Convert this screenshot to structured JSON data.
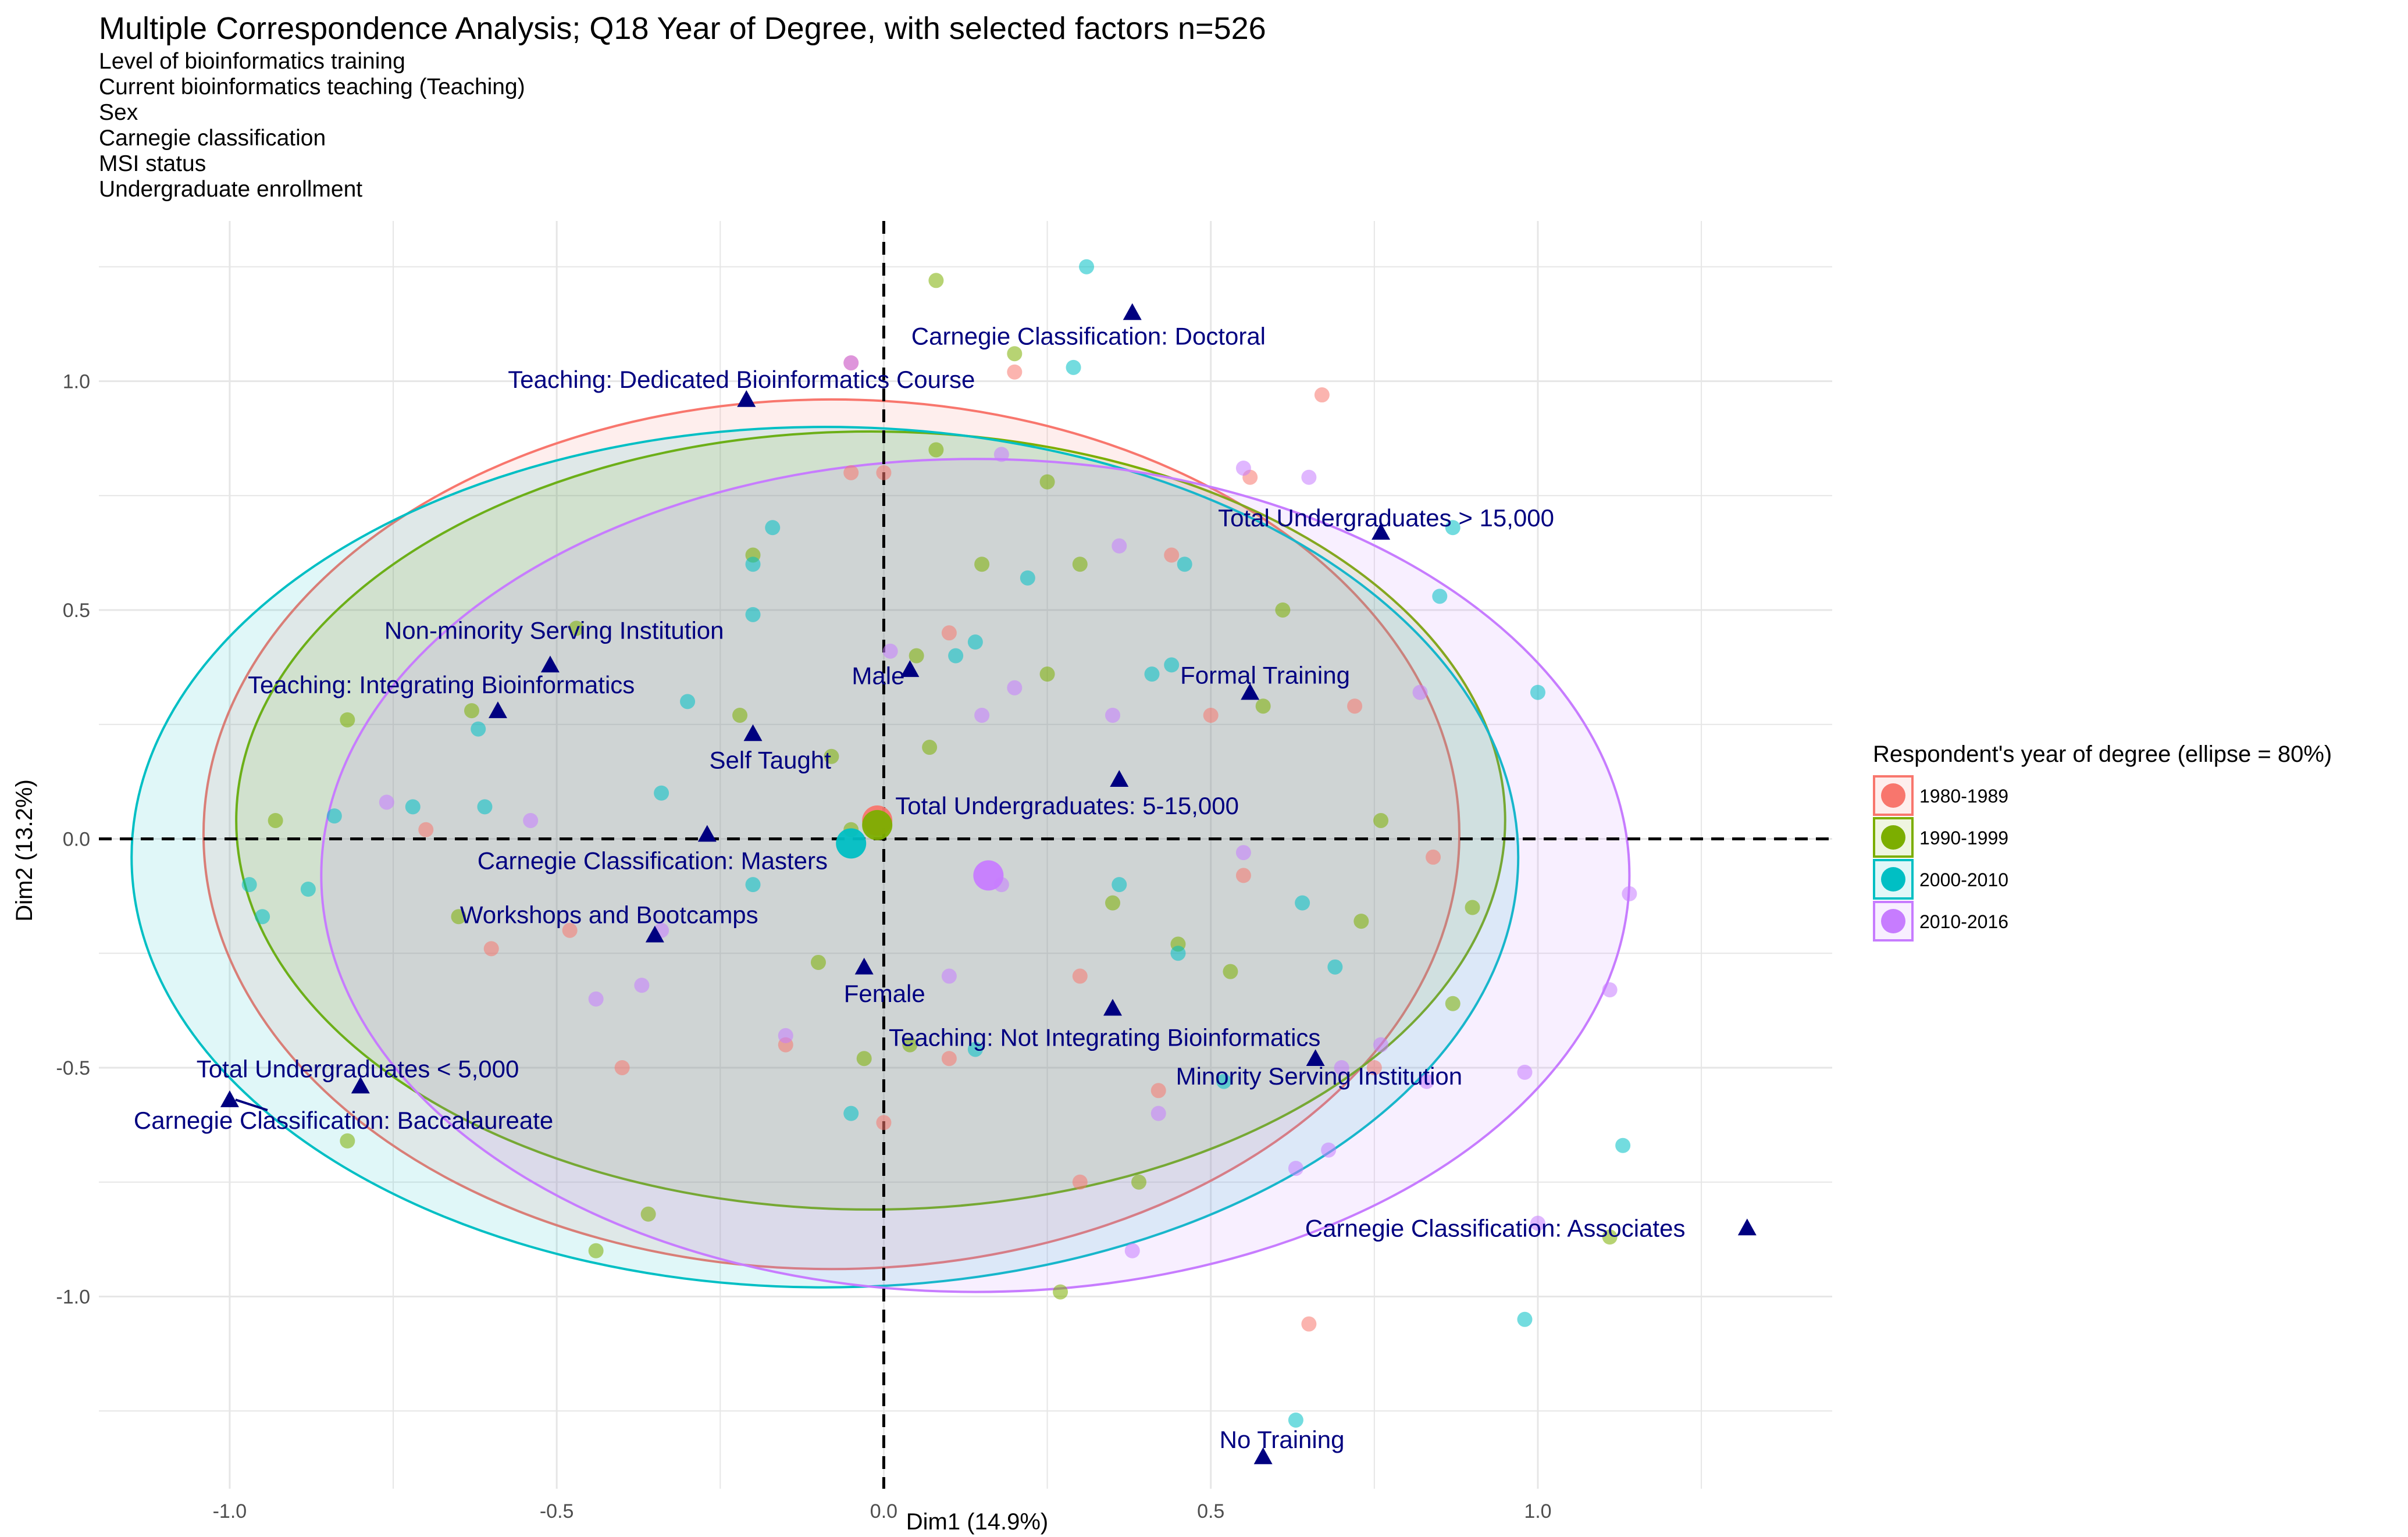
{
  "chart_data": {
    "type": "scatter",
    "title": "Multiple Correspondence Analysis; Q18 Year of Degree, with selected factors n=526",
    "subtitle_lines": [
      "Level of bioinformatics training",
      "Current bioinformatics teaching (Teaching)",
      "Sex",
      "Carnegie classification",
      "MSI status",
      "Undergraduate enrollment"
    ],
    "xlabel": "Dim1 (14.9%)",
    "ylabel": "Dim2 (13.2%)",
    "xlim": [
      -1.2,
      1.45
    ],
    "ylim": [
      -1.42,
      1.35
    ],
    "x_ticks": [
      -1.0,
      -0.5,
      0.0,
      0.5,
      1.0
    ],
    "x_tick_labels": [
      "-1.0",
      "-0.5",
      "0.0",
      "0.5",
      "1.0"
    ],
    "y_ticks": [
      -1.0,
      -0.5,
      0.0,
      0.5,
      1.0
    ],
    "y_tick_labels": [
      "-1.0",
      "-0.5",
      "0.0",
      "0.5",
      "1.0"
    ],
    "grid": true,
    "reference_lines": {
      "x": 0,
      "y": 0,
      "style": "dashed"
    },
    "legend": {
      "title": "Respondent's year of degree (ellipse = 80%)",
      "position": "right",
      "entries": [
        "1980-1989",
        "1990-1999",
        "2000-2010",
        "2010-2016"
      ]
    },
    "series": [
      {
        "name": "1980-1989",
        "color": "#F8766D",
        "centroid": [
          -0.01,
          0.04
        ],
        "ellipse": {
          "cx": -0.08,
          "cy": 0.01,
          "rx": 0.96,
          "ry": 0.95
        },
        "points": [
          [
            -0.05,
            1.04
          ],
          [
            0.2,
            1.02
          ],
          [
            0.67,
            0.97
          ],
          [
            -0.05,
            0.8
          ],
          [
            0.0,
            0.8
          ],
          [
            0.56,
            0.79
          ],
          [
            0.44,
            0.62
          ],
          [
            0.5,
            0.27
          ],
          [
            0.72,
            0.29
          ],
          [
            -0.7,
            0.02
          ],
          [
            0.84,
            -0.04
          ],
          [
            -0.6,
            -0.24
          ],
          [
            0.75,
            -0.5
          ],
          [
            0.42,
            -0.55
          ],
          [
            0.1,
            -0.48
          ],
          [
            -0.15,
            -0.45
          ],
          [
            -0.4,
            -0.5
          ],
          [
            0.3,
            -0.3
          ],
          [
            0.0,
            -0.62
          ],
          [
            0.65,
            -1.06
          ],
          [
            0.3,
            -0.75
          ],
          [
            -0.48,
            -0.2
          ],
          [
            0.1,
            0.45
          ],
          [
            0.55,
            -0.08
          ]
        ]
      },
      {
        "name": "1990-1999",
        "color": "#7CAE00",
        "centroid": [
          -0.01,
          0.03
        ],
        "ellipse": {
          "cx": -0.02,
          "cy": 0.04,
          "rx": 0.97,
          "ry": 0.85
        },
        "points": [
          [
            0.08,
            1.22
          ],
          [
            0.2,
            1.06
          ],
          [
            0.08,
            0.85
          ],
          [
            0.25,
            0.78
          ],
          [
            -0.2,
            0.62
          ],
          [
            0.3,
            0.6
          ],
          [
            0.61,
            0.5
          ],
          [
            -0.47,
            0.46
          ],
          [
            0.05,
            0.4
          ],
          [
            0.25,
            0.36
          ],
          [
            0.58,
            0.29
          ],
          [
            -0.82,
            0.26
          ],
          [
            0.07,
            0.2
          ],
          [
            -0.08,
            0.18
          ],
          [
            -0.93,
            0.04
          ],
          [
            0.76,
            0.04
          ],
          [
            -0.05,
            0.02
          ],
          [
            0.9,
            -0.15
          ],
          [
            0.73,
            -0.18
          ],
          [
            0.35,
            -0.14
          ],
          [
            -0.65,
            -0.17
          ],
          [
            0.53,
            -0.29
          ],
          [
            0.87,
            -0.36
          ],
          [
            -0.1,
            -0.27
          ],
          [
            -0.03,
            -0.48
          ],
          [
            0.04,
            -0.45
          ],
          [
            0.39,
            -0.75
          ],
          [
            -0.36,
            -0.82
          ],
          [
            -0.44,
            -0.9
          ],
          [
            0.27,
            -0.99
          ],
          [
            1.11,
            -0.87
          ],
          [
            -0.82,
            -0.66
          ],
          [
            0.45,
            -0.23
          ],
          [
            -0.22,
            0.27
          ],
          [
            -0.63,
            0.28
          ],
          [
            0.15,
            0.6
          ]
        ]
      },
      {
        "name": "2000-2010",
        "color": "#00BFC4",
        "centroid": [
          -0.05,
          -0.01
        ],
        "ellipse": {
          "cx": -0.09,
          "cy": -0.04,
          "rx": 1.06,
          "ry": 0.94
        },
        "points": [
          [
            0.31,
            1.25
          ],
          [
            0.29,
            1.03
          ],
          [
            0.22,
            0.57
          ],
          [
            0.46,
            0.6
          ],
          [
            0.87,
            0.68
          ],
          [
            -0.17,
            0.68
          ],
          [
            -0.2,
            0.6
          ],
          [
            -0.2,
            0.49
          ],
          [
            0.11,
            0.4
          ],
          [
            0.14,
            0.43
          ],
          [
            -0.3,
            0.3
          ],
          [
            0.41,
            0.36
          ],
          [
            0.85,
            0.53
          ],
          [
            1.0,
            0.32
          ],
          [
            -0.62,
            0.24
          ],
          [
            -0.88,
            -0.11
          ],
          [
            -0.95,
            -0.17
          ],
          [
            -0.97,
            -0.1
          ],
          [
            -0.84,
            0.05
          ],
          [
            -0.61,
            0.07
          ],
          [
            -0.72,
            0.07
          ],
          [
            0.36,
            -0.1
          ],
          [
            0.64,
            -0.14
          ],
          [
            0.69,
            -0.28
          ],
          [
            -0.05,
            -0.6
          ],
          [
            0.14,
            -0.46
          ],
          [
            0.52,
            -0.53
          ],
          [
            0.98,
            -1.05
          ],
          [
            0.63,
            -1.27
          ],
          [
            1.13,
            -0.67
          ],
          [
            0.44,
            0.38
          ],
          [
            -0.34,
            0.1
          ],
          [
            0.45,
            -0.25
          ],
          [
            -0.2,
            -0.1
          ]
        ]
      },
      {
        "name": "2010-2016",
        "color": "#C77CFF",
        "centroid": [
          0.16,
          -0.08
        ],
        "ellipse": {
          "cx": 0.14,
          "cy": -0.08,
          "rx": 1.0,
          "ry": 0.91
        },
        "points": [
          [
            -0.05,
            1.04
          ],
          [
            0.18,
            0.84
          ],
          [
            0.65,
            0.79
          ],
          [
            0.55,
            0.81
          ],
          [
            0.36,
            0.64
          ],
          [
            0.82,
            0.32
          ],
          [
            0.2,
            0.33
          ],
          [
            0.15,
            0.27
          ],
          [
            0.35,
            0.27
          ],
          [
            0.01,
            0.41
          ],
          [
            -0.76,
            0.08
          ],
          [
            -0.54,
            0.04
          ],
          [
            0.55,
            -0.03
          ],
          [
            1.14,
            -0.12
          ],
          [
            1.11,
            -0.33
          ],
          [
            0.98,
            -0.51
          ],
          [
            0.83,
            -0.53
          ],
          [
            0.76,
            -0.45
          ],
          [
            0.7,
            -0.5
          ],
          [
            0.68,
            -0.68
          ],
          [
            0.63,
            -0.72
          ],
          [
            0.38,
            -0.9
          ],
          [
            1.0,
            -0.84
          ],
          [
            -0.34,
            -0.2
          ],
          [
            -0.37,
            -0.32
          ],
          [
            -0.44,
            -0.35
          ],
          [
            -0.15,
            -0.43
          ],
          [
            0.42,
            -0.6
          ],
          [
            0.18,
            -0.1
          ],
          [
            0.1,
            -0.3
          ]
        ]
      }
    ],
    "category_points": [
      {
        "label": "Carnegie Classification: Doctoral",
        "x": 0.38,
        "y": 1.15
      },
      {
        "label": "Teaching: Dedicated Bioinformatics Course",
        "x": -0.21,
        "y": 0.96
      },
      {
        "label": "Total Undergraduates > 15,000",
        "x": 0.76,
        "y": 0.67
      },
      {
        "label": "Non-minority Serving Institution",
        "x": -0.51,
        "y": 0.38
      },
      {
        "label": "Teaching: Integrating Bioinformatics",
        "x": -0.59,
        "y": 0.28
      },
      {
        "label": "Male",
        "x": 0.04,
        "y": 0.37
      },
      {
        "label": "Formal Training",
        "x": 0.56,
        "y": 0.32
      },
      {
        "label": "Self Taught",
        "x": -0.2,
        "y": 0.23
      },
      {
        "label": "Total Undergraduates: 5-15,000",
        "x": 0.36,
        "y": 0.13
      },
      {
        "label": "Carnegie Classification: Masters",
        "x": -0.27,
        "y": 0.01
      },
      {
        "label": "Workshops and Bootcamps",
        "x": -0.35,
        "y": -0.21
      },
      {
        "label": "Female",
        "x": -0.03,
        "y": -0.28
      },
      {
        "label": "Teaching: Not Integrating Bioinformatics",
        "x": 0.35,
        "y": -0.37
      },
      {
        "label": "Minority Serving Institution",
        "x": 0.66,
        "y": -0.48
      },
      {
        "label": "Total Undergraduates < 5,000",
        "x": -0.8,
        "y": -0.54
      },
      {
        "label": "Carnegie Classification: Baccalaureate",
        "x": -1.0,
        "y": -0.57
      },
      {
        "label": "Carnegie Classification: Associates",
        "x": 1.32,
        "y": -0.85
      },
      {
        "label": "No Training",
        "x": 0.58,
        "y": -1.35
      }
    ],
    "category_color": "#000080"
  }
}
